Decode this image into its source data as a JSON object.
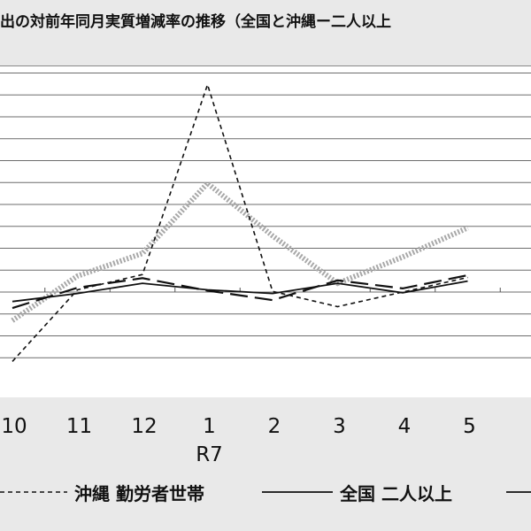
{
  "title_visible": "出の対前年同月実質増減率の推移（全国と沖縄ー二人以上",
  "chart_data": {
    "type": "line",
    "categories": [
      "10",
      "11",
      "12",
      "1",
      "2",
      "3",
      "4",
      "5"
    ],
    "category_sublabels": {
      "1": "R7"
    },
    "grid": true,
    "legend_position": "bottom",
    "series": [
      {
        "name": "沖縄 勤労者世帯",
        "style": "dashed",
        "color": "#111111",
        "values": [
          -9.5,
          0.3,
          2.4,
          28.4,
          0.1,
          -2.0,
          0.0,
          2.0
        ]
      },
      {
        "name": "全国 二人以上",
        "style": "solid",
        "color": "#111111",
        "values": [
          -1.3,
          -0.2,
          1.2,
          0.3,
          -0.2,
          1.2,
          -0.1,
          1.5
        ]
      },
      {
        "name": "",
        "style": "long-dash",
        "color": "#111111",
        "values": [
          -2.2,
          0.6,
          1.9,
          0.2,
          -1.1,
          1.6,
          0.5,
          2.3
        ]
      },
      {
        "name": "",
        "style": "thick-dotted",
        "color": "#a8a8a8",
        "values": [
          -3.9,
          2.2,
          5.3,
          14.9,
          7.7,
          1.2,
          4.8,
          8.8
        ]
      }
    ]
  },
  "legend": {
    "items": [
      "沖縄 勤労者世帯",
      "全国 二人以上"
    ]
  }
}
